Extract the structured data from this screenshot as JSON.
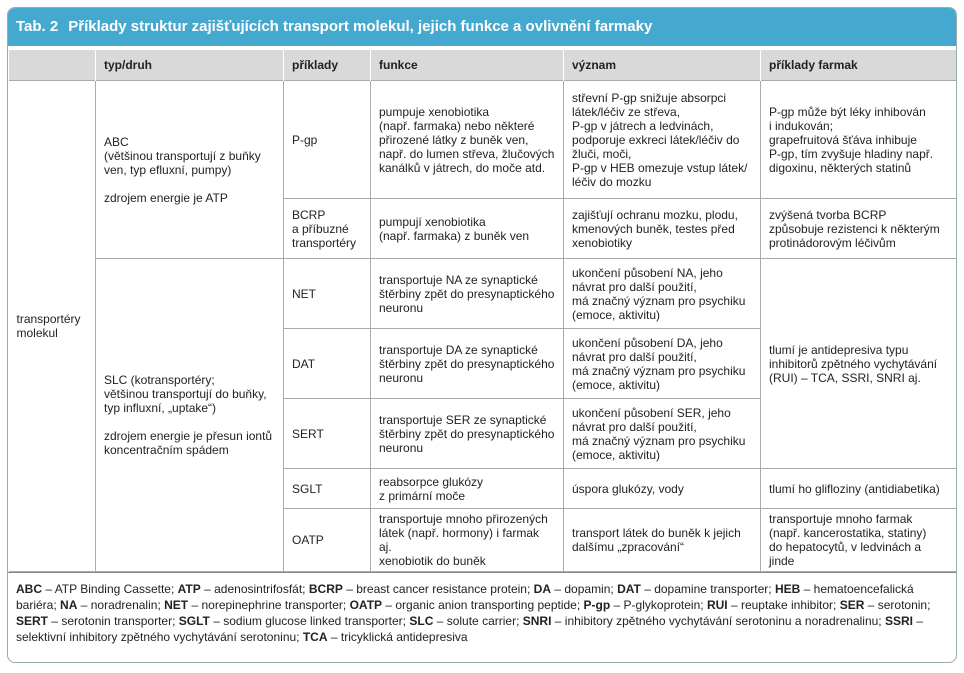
{
  "title": {
    "label": "Tab. 2",
    "text": "Příklady struktur zajišťujících transport molekul, jejich funkce a ovlivnění farmaky"
  },
  "headers": [
    "typ/druh",
    "příklady",
    "funkce",
    "význam",
    "příklady farmak"
  ],
  "group": [
    "transportéry",
    "molekul"
  ],
  "types": [
    {
      "lines": [
        "ABC",
        "(většinou transportují z buňky",
        "ven, typ efluxní, pumpy)"
      ],
      "energy": [
        "zdrojem energie je ATP"
      ]
    },
    {
      "lines": [
        "SLC (kotransportéry;",
        "většinou transportují do buňky,",
        "typ influxní, „uptake“)"
      ],
      "energy": [
        "zdrojem energie je přesun iontů",
        "koncentračním spádem"
      ]
    }
  ],
  "rows": [
    {
      "example": [
        "P-gp"
      ],
      "function": [
        "pumpuje xenobiotika",
        "(např. farmaka) nebo některé",
        "přirozené látky z buněk ven,",
        "např. do lumen střeva, žlučových",
        "kanálků v játrech, do moče atd."
      ],
      "meaning": [
        "střevní P-gp snižuje absorpci",
        "látek/léčiv ze střeva,",
        "P-gp v játrech a ledvinách,",
        "podporuje exkreci látek/léčiv do",
        "žluči, moči,",
        "P-gp v HEB omezuje vstup látek/",
        "léčiv do mozku"
      ],
      "drugs": [
        "P-gp může být léky inhibován",
        "i indukován;",
        "grapefruitová šťáva inhibuje",
        "P-gp, tím zvyšuje hladiny např.",
        "digoxinu, některých statinů"
      ]
    },
    {
      "example": [
        "BCRP",
        "a příbuzné",
        "transportéry"
      ],
      "function": [
        "pumpují xenobiotika",
        "(např. farmaka) z buněk ven"
      ],
      "meaning": [
        "zajišťují ochranu mozku, plodu,",
        "kmenových buněk, testes před",
        "xenobiotiky"
      ],
      "drugs": [
        "zvýšená tvorba BCRP",
        "způsobuje rezistenci k některým",
        "protinádorovým léčivům"
      ]
    },
    {
      "example": [
        "NET"
      ],
      "function": [
        "transportuje NA ze synaptické",
        "štěrbiny zpět do presynaptického",
        "neuronu"
      ],
      "meaning": [
        "ukončení působení NA, jeho",
        "návrat pro další použití,",
        "má značný význam pro psychiku",
        "(emoce, aktivitu)"
      ]
    },
    {
      "example": [
        "DAT"
      ],
      "function": [
        "transportuje DA ze synaptické",
        "štěrbiny zpět do presynaptického",
        "neuronu"
      ],
      "meaning": [
        "ukončení působení DA, jeho",
        "návrat pro další použití,",
        "má značný význam pro psychiku",
        "(emoce, aktivitu)"
      ]
    },
    {
      "example": [
        "SERT"
      ],
      "function": [
        "transportuje SER ze synaptické",
        "štěrbiny zpět do presynaptického",
        "neuronu"
      ],
      "meaning": [
        "ukončení působení SER, jeho",
        "návrat pro další použití,",
        "má značný význam pro psychiku",
        "(emoce, aktivitu)"
      ]
    },
    {
      "example": [
        "SGLT"
      ],
      "function": [
        "reabsorpce glukózy",
        "z primární moče"
      ],
      "meaning": [
        "úspora glukózy, vody"
      ],
      "drugs": [
        "tlumí ho glifloziny (antidiabetika)"
      ]
    },
    {
      "example": [
        "OATP"
      ],
      "function": [
        "transportuje mnoho přirozených",
        "látek (např. hormony) i farmak aj.",
        "xenobiotik do buněk"
      ],
      "meaning": [
        "transport látek do buněk k jejich",
        "dalšímu „zpracování“"
      ],
      "drugs": [
        "transportuje mnoho farmak",
        "(např. kancerostatika, statiny)",
        "do hepatocytů, v ledvinách a jinde"
      ]
    }
  ],
  "shared_drugs": [
    "tlumí je antidepresiva typu",
    "inhibitorů zpětného vychytávání",
    "(RUI) – TCA, SSRI, SNRI aj."
  ],
  "footnote": [
    {
      "abbr": "ABC",
      "text": "– ATP Binding Cassette;"
    },
    {
      "abbr": "ATP",
      "text": "– adenosintrifosfát;"
    },
    {
      "abbr": "BCRP",
      "text": "– breast cancer resistance protein;"
    },
    {
      "abbr": "DA",
      "text": "– dopamin;"
    },
    {
      "abbr": "DAT",
      "text": "– dopamine transporter;"
    },
    {
      "abbr": "HEB",
      "text": "– hematoencefalická bariéra;"
    },
    {
      "abbr": "NA",
      "text": "– noradrenalin;"
    },
    {
      "abbr": "NET",
      "text": "– norepinephrine transporter;"
    },
    {
      "abbr": "OATP",
      "text": "– organic anion transporting peptide;"
    },
    {
      "abbr": "P-gp",
      "text": "– P-glykoprotein;"
    },
    {
      "abbr": "RUI",
      "text": "– reuptake inhibitor;"
    },
    {
      "abbr": "SER",
      "text": "– serotonin;"
    },
    {
      "abbr": "SERT",
      "text": "– serotonin transporter;"
    },
    {
      "abbr": "SGLT",
      "text": "– sodium glucose linked transporter;"
    },
    {
      "abbr": "SLC",
      "text": "– solute carrier;"
    },
    {
      "abbr": "SNRI",
      "text": "– inhibitory zpětného vychytávání serotoninu a noradrenalinu;"
    },
    {
      "abbr": "SSRI",
      "text": "– selektivní inhibitory zpětného vychytávání serotoninu;"
    },
    {
      "abbr": "TCA",
      "text": "– tricyklická antidepresiva"
    }
  ]
}
